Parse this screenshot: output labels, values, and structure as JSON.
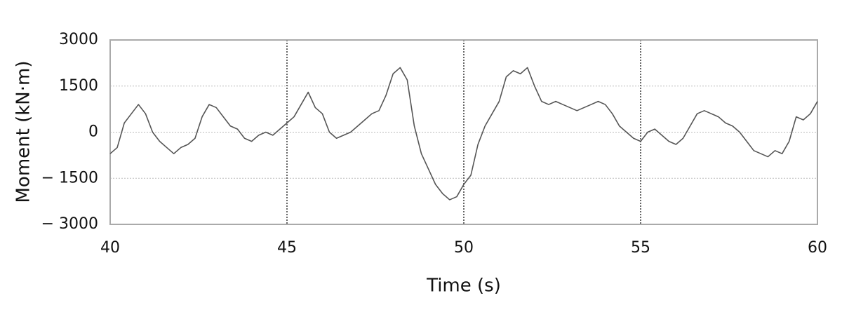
{
  "chart_data": {
    "type": "line",
    "xlabel": "Time (s)",
    "ylabel": "Moment (kN·m)",
    "x": [
      40,
      40.2,
      40.4,
      40.6,
      40.8,
      41,
      41.2,
      41.4,
      41.6,
      41.8,
      42,
      42.2,
      42.4,
      42.6,
      42.8,
      43,
      43.2,
      43.4,
      43.6,
      43.8,
      44,
      44.2,
      44.4,
      44.6,
      44.8,
      45,
      45.2,
      45.4,
      45.6,
      45.8,
      46,
      46.2,
      46.4,
      46.6,
      46.8,
      47,
      47.2,
      47.4,
      47.6,
      47.8,
      48,
      48.2,
      48.4,
      48.6,
      48.8,
      49,
      49.2,
      49.4,
      49.6,
      49.8,
      50,
      50.2,
      50.4,
      50.6,
      50.8,
      51,
      51.2,
      51.4,
      51.6,
      51.8,
      52,
      52.2,
      52.4,
      52.6,
      52.8,
      53,
      53.2,
      53.4,
      53.6,
      53.8,
      54,
      54.2,
      54.4,
      54.6,
      54.8,
      55,
      55.2,
      55.4,
      55.6,
      55.8,
      56,
      56.2,
      56.4,
      56.6,
      56.8,
      57,
      57.2,
      57.4,
      57.6,
      57.8,
      58,
      58.2,
      58.4,
      58.6,
      58.8,
      59,
      59.2,
      59.4,
      59.6,
      59.8,
      60
    ],
    "series": [
      {
        "name": "Moment",
        "color": "#555555",
        "values": [
          -700,
          -500,
          300,
          600,
          900,
          600,
          0,
          -300,
          -500,
          -700,
          -500,
          -400,
          -200,
          500,
          900,
          800,
          500,
          200,
          100,
          -200,
          -300,
          -100,
          0,
          -100,
          100,
          300,
          500,
          900,
          1300,
          800,
          600,
          0,
          -200,
          -100,
          0,
          200,
          400,
          600,
          700,
          1200,
          1900,
          2100,
          1700,
          200,
          -700,
          -1200,
          -1700,
          -2000,
          -2200,
          -2100,
          -1700,
          -1400,
          -400,
          200,
          600,
          1000,
          1800,
          2000,
          1900,
          2100,
          1500,
          1000,
          900,
          1000,
          900,
          800,
          700,
          800,
          900,
          1000,
          900,
          600,
          200,
          0,
          -200,
          -300,
          0,
          100,
          -100,
          -300,
          -400,
          -200,
          200,
          600,
          700,
          600,
          500,
          300,
          200,
          0,
          -300,
          -600,
          -700,
          -800,
          -600,
          -700,
          -300,
          500,
          400,
          600,
          1000
        ]
      }
    ],
    "xlim": [
      40,
      60
    ],
    "xticks": [
      40,
      45,
      50,
      55,
      60
    ],
    "ylim": [
      -3000,
      3000
    ],
    "yticks": [
      {
        "value": -3000,
        "label": "− 3000"
      },
      {
        "value": -1500,
        "label": "− 1500"
      },
      0,
      1500,
      3000
    ],
    "grid": true
  }
}
